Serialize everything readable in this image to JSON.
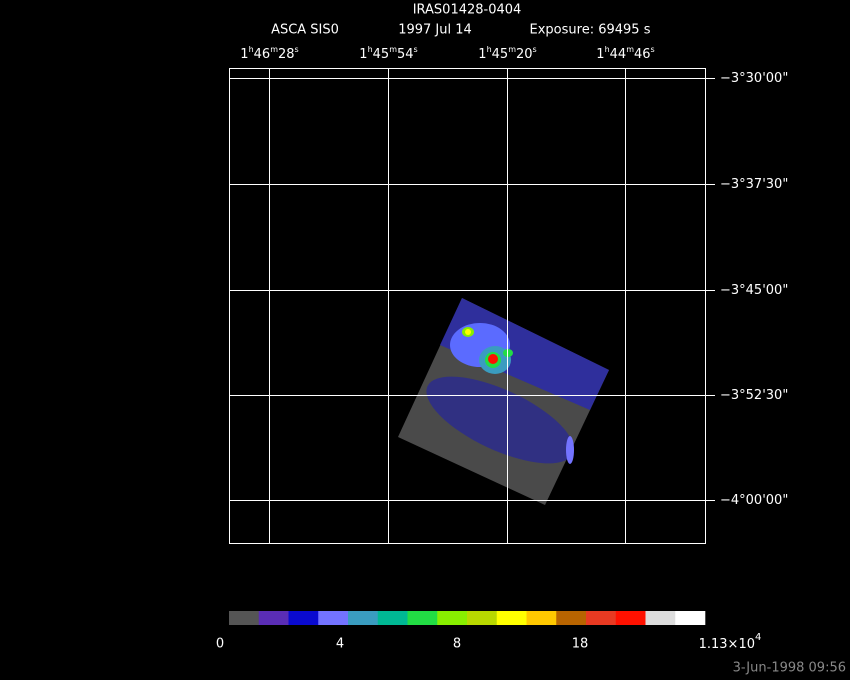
{
  "header": {
    "title": "IRAS01428-0404",
    "instrument": "ASCA SIS0",
    "date": "1997 Jul 14",
    "exposure": "Exposure: 69495 s"
  },
  "ra_units": [
    "h",
    "m",
    "s"
  ],
  "ra_labels": [
    [
      "1",
      "46",
      "28"
    ],
    [
      "1",
      "45",
      "54"
    ],
    [
      "1",
      "45",
      "20"
    ],
    [
      "1",
      "44",
      "46"
    ]
  ],
  "dec_labels": [
    "−3°30'00\"",
    "−3°37'30\"",
    "−3°45'00\"",
    "−3°52'30\"",
    "−4°00'00\""
  ],
  "colorbar": {
    "colors": [
      "#555555",
      "#5a2db5",
      "#0a0ad0",
      "#7373ff",
      "#3a9cc0",
      "#00b894",
      "#22dd44",
      "#88ee00",
      "#b8d800",
      "#ffff00",
      "#ffc800",
      "#b86400",
      "#e83a22",
      "#ff1100",
      "#dddddd",
      "#ffffff"
    ],
    "labels": [
      "0",
      "4",
      "8",
      "18"
    ],
    "max_mantissa": "1.13×10",
    "max_exponent": "4"
  },
  "footer": "3-Jun-1998 09:56"
}
